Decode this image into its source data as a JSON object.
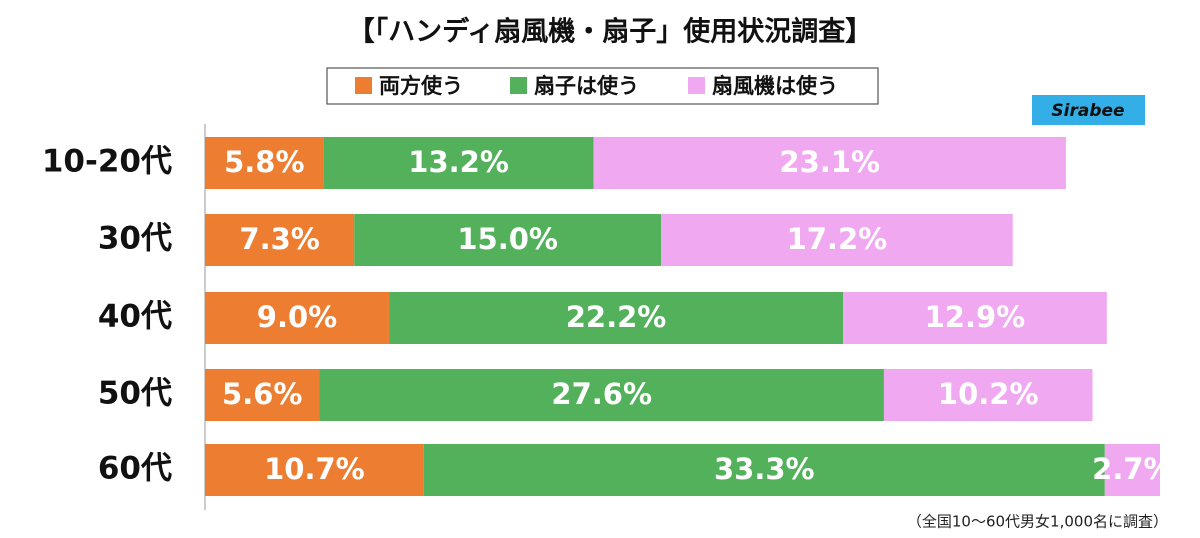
{
  "chart_data": {
    "type": "stacked-bar",
    "title": "【「ハンディ扇風機・扇子」使用状況調査】",
    "categories": [
      "10-20代",
      "30代",
      "40代",
      "50代",
      "60代"
    ],
    "series": [
      {
        "name": "両方使う",
        "color": "#ed7d31",
        "values": [
          5.8,
          7.3,
          9.0,
          5.6,
          10.7
        ],
        "value_labels": [
          "5.8%",
          "7.3%",
          "9.0%",
          "5.6%",
          "10.7%"
        ]
      },
      {
        "name": "扇子は使う",
        "color": "#53b15b",
        "values": [
          13.2,
          15.0,
          22.2,
          27.6,
          33.3
        ],
        "value_labels": [
          "13.2%",
          "15.0%",
          "22.2%",
          "27.6%",
          "33.3%"
        ]
      },
      {
        "name": "扇風機は使う",
        "color": "#f0a9f0",
        "values": [
          23.1,
          17.2,
          12.9,
          10.2,
          2.7
        ],
        "value_labels": [
          "23.1%",
          "17.2%",
          "12.9%",
          "10.2%",
          "2.7%"
        ]
      }
    ],
    "logo": "Sirabee",
    "note": "（全国10〜60代男女1,000名に調査）"
  }
}
